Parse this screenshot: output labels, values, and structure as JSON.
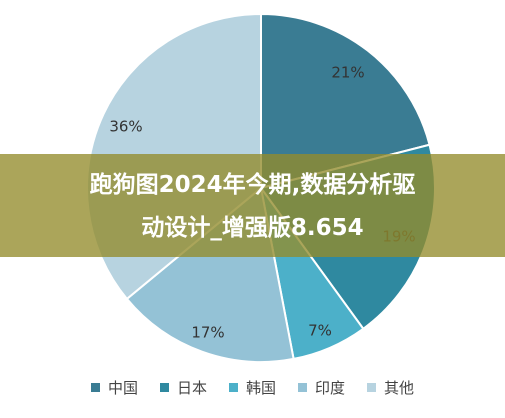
{
  "chart_data": {
    "type": "pie",
    "categories": [
      "中国",
      "日本",
      "韩国",
      "印度",
      "其他"
    ],
    "values": [
      21,
      19,
      7,
      17,
      36
    ],
    "labels": [
      "21%",
      "19%",
      "7%",
      "17%",
      "36%"
    ],
    "colors": [
      "#3a7c93",
      "#2f89a0",
      "#4cb0c9",
      "#94c2d6",
      "#b7d3e0"
    ],
    "start_angle_deg": 0,
    "direction": "clockwise",
    "legend_position": "bottom"
  },
  "watermark": {
    "line1": "跑狗图2024年今期,数据分析驱",
    "line2": "动设计_增强版8.654"
  }
}
